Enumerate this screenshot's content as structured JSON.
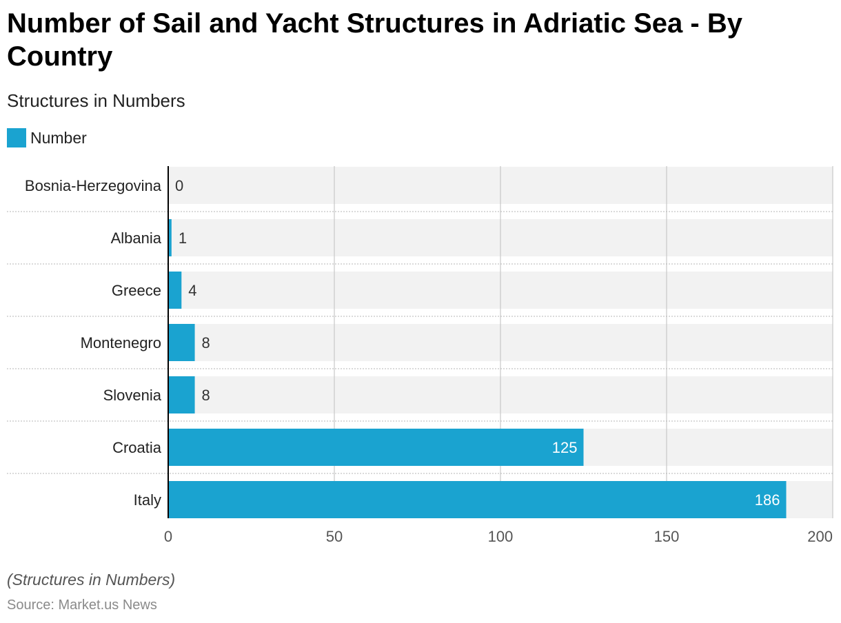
{
  "header": {
    "title": "Number of Sail and Yacht Structures in Adriatic Sea - By Country",
    "subtitle": "Structures in Numbers"
  },
  "legend": {
    "label": "Number",
    "color": "#1aa3d0"
  },
  "footer": {
    "note": "(Structures in Numbers)",
    "source": "Source: Market.us News"
  },
  "colors": {
    "bar": "#1aa3d0",
    "band": "#f2f2f2",
    "grid": "#c8c8c8",
    "axis": "#000000",
    "label_outside": "#333333",
    "label_inside": "#ffffff",
    "tick_text": "#555555"
  },
  "chart_data": {
    "type": "bar",
    "orientation": "horizontal",
    "title": "Number of Sail and Yacht Structures in Adriatic Sea - By Country",
    "subtitle": "Structures in Numbers",
    "categories": [
      "Bosnia-Herzegovina",
      "Albania",
      "Greece",
      "Montenegro",
      "Slovenia",
      "Croatia",
      "Italy"
    ],
    "series": [
      {
        "name": "Number",
        "values": [
          0,
          1,
          4,
          8,
          8,
          125,
          186
        ]
      }
    ],
    "xlim": [
      0,
      200
    ],
    "xticks": [
      0,
      50,
      100,
      150,
      200
    ],
    "grid": true,
    "legend_position": "top-left"
  }
}
